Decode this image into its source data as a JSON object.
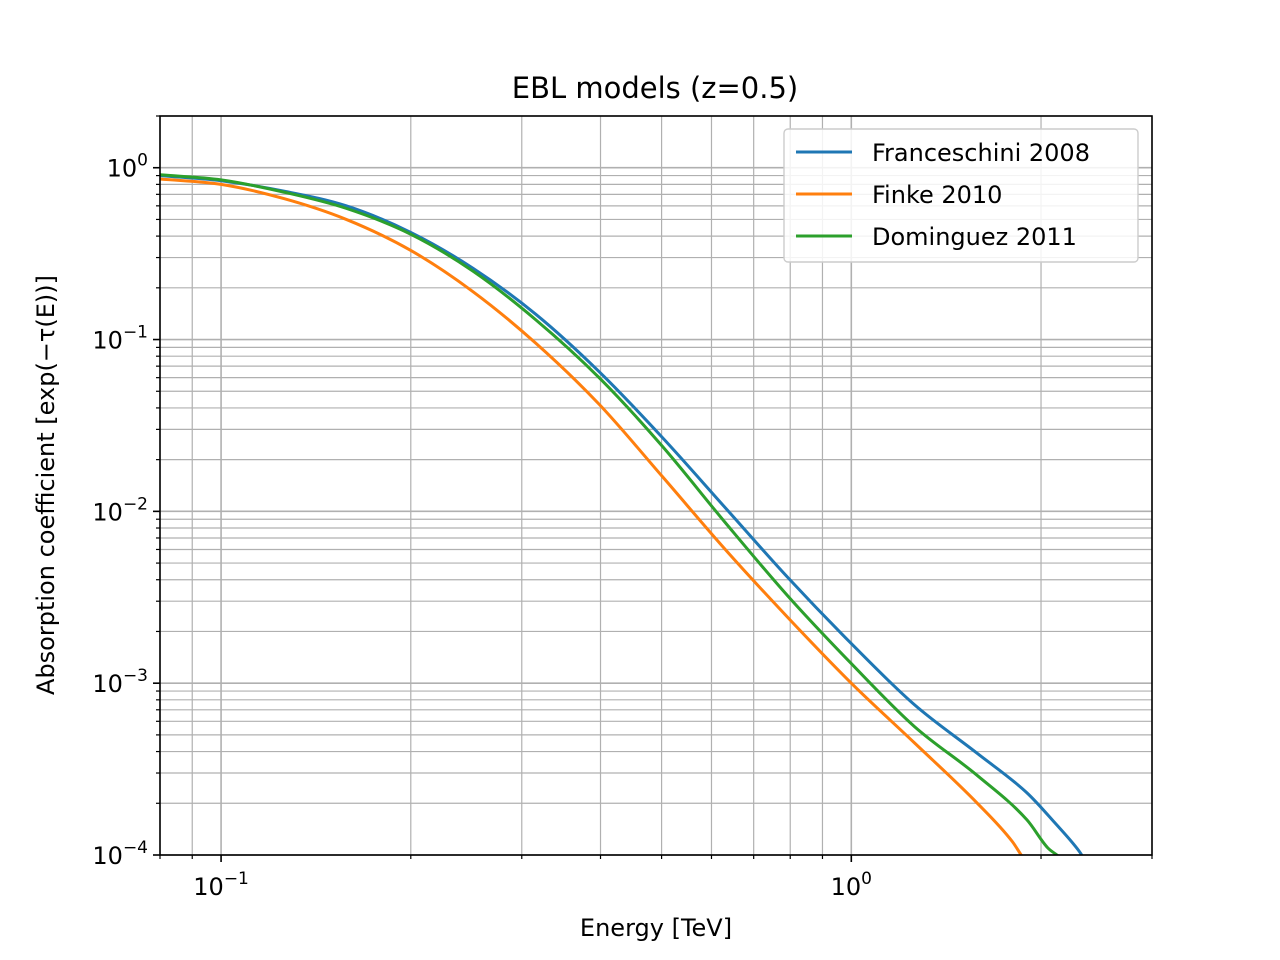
{
  "chart_data": {
    "type": "line",
    "title": "EBL models (z=0.5)",
    "xlabel": "Energy [TeV]",
    "ylabel": "Absorption coefficient [exp(−τ(E))]",
    "xscale": "log",
    "yscale": "log",
    "xlim": [
      0.08,
      3.0
    ],
    "ylim": [
      0.0001,
      2.0
    ],
    "grid": "major and minor",
    "legend_position": "top-right",
    "x_ticks": [
      {
        "value": 0.1,
        "base": "10",
        "exp": "−1"
      },
      {
        "value": 1.0,
        "base": "10",
        "exp": "0"
      }
    ],
    "y_ticks": [
      {
        "value": 1.0,
        "base": "10",
        "exp": "0"
      },
      {
        "value": 0.1,
        "base": "10",
        "exp": "−1"
      },
      {
        "value": 0.01,
        "base": "10",
        "exp": "−2"
      },
      {
        "value": 0.001,
        "base": "10",
        "exp": "−3"
      },
      {
        "value": 0.0001,
        "base": "10",
        "exp": "−4"
      }
    ],
    "series": [
      {
        "name": "Franceschini 2008",
        "color": "#1f77b4",
        "x": [
          0.08,
          0.1,
          0.126,
          0.158,
          0.2,
          0.251,
          0.316,
          0.398,
          0.501,
          0.631,
          0.794,
          1.0,
          1.259,
          1.585,
          1.9,
          2.1,
          2.3,
          2.32
        ],
        "y": [
          0.9,
          0.84,
          0.73,
          0.6,
          0.42,
          0.26,
          0.14,
          0.065,
          0.027,
          0.0105,
          0.0041,
          0.0017,
          0.00075,
          0.00039,
          0.00023,
          0.000155,
          0.000105,
          0.0001
        ]
      },
      {
        "name": "Finke 2010",
        "color": "#ff7f0e",
        "x": [
          0.08,
          0.1,
          0.126,
          0.158,
          0.2,
          0.251,
          0.316,
          0.398,
          0.501,
          0.631,
          0.794,
          1.0,
          1.259,
          1.585,
          1.8,
          1.86
        ],
        "y": [
          0.86,
          0.8,
          0.66,
          0.5,
          0.33,
          0.19,
          0.095,
          0.042,
          0.016,
          0.006,
          0.0024,
          0.001,
          0.00045,
          0.0002,
          0.00012,
          0.0001
        ]
      },
      {
        "name": "Dominguez 2011",
        "color": "#2ca02c",
        "x": [
          0.08,
          0.1,
          0.126,
          0.158,
          0.2,
          0.251,
          0.316,
          0.398,
          0.501,
          0.631,
          0.794,
          1.0,
          1.259,
          1.585,
          1.9,
          2.05,
          2.12
        ],
        "y": [
          0.91,
          0.85,
          0.72,
          0.58,
          0.41,
          0.25,
          0.13,
          0.06,
          0.024,
          0.0086,
          0.0032,
          0.0013,
          0.00056,
          0.00029,
          0.00016,
          0.00011,
          0.0001
        ]
      }
    ]
  }
}
